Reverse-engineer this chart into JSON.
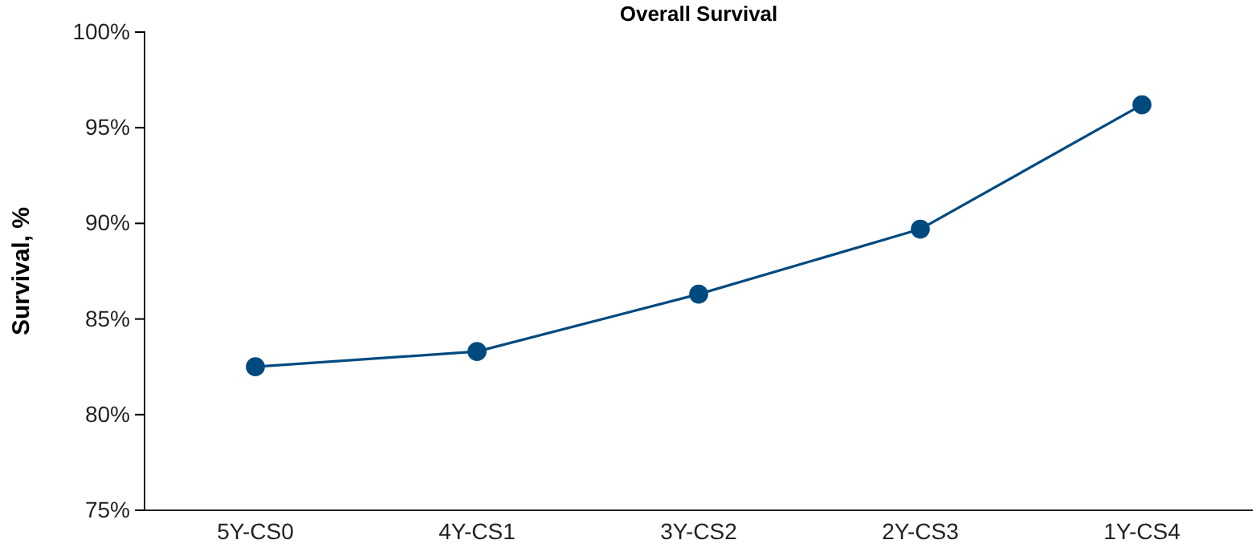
{
  "chart_data": {
    "type": "line",
    "title": "Overall Survival",
    "ylabel": "Survival, %",
    "categories": [
      "5Y-CS0",
      "4Y-CS1",
      "3Y-CS2",
      "2Y-CS3",
      "1Y-CS4"
    ],
    "series": [
      {
        "color": "#004a80",
        "values": [
          82.5,
          83.3,
          86.3,
          89.7,
          96.2
        ]
      }
    ],
    "ylim": [
      75,
      100
    ],
    "yticks": [
      {
        "value": 75,
        "label": "75%"
      },
      {
        "value": 80,
        "label": "80%"
      },
      {
        "value": 85,
        "label": "85%"
      },
      {
        "value": 90,
        "label": "90%"
      },
      {
        "value": 95,
        "label": "95%"
      },
      {
        "value": 100,
        "label": "100%"
      }
    ],
    "marker": "circle",
    "line_style": "solid",
    "grid": false
  }
}
